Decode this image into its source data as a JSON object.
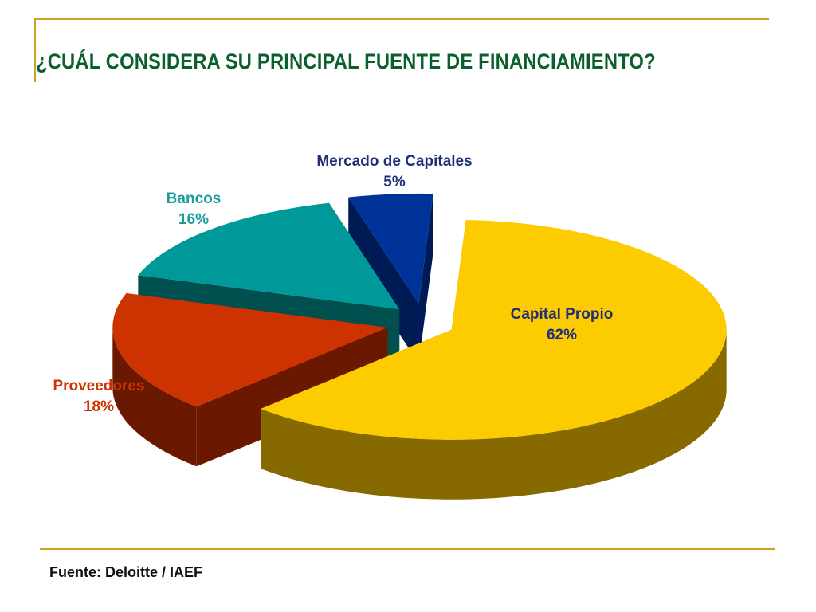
{
  "title": "¿CUÁL CONSIDERA SU PRINCIPAL FUENTE DE FINANCIAMIENTO?",
  "source": "Fuente: Deloitte / IAEF",
  "colors": {
    "title": "#0b5f2c",
    "rule": "#c9a227"
  },
  "chart_data": {
    "type": "pie",
    "style": "3d-exploded",
    "slices": [
      {
        "label": "Capital Propio",
        "value_label": "62%",
        "value": 62,
        "color": "#fdcc00",
        "side_color": "#866a00",
        "label_color": "#1f2f7a"
      },
      {
        "label": "Proveedores",
        "value_label": "18%",
        "value": 18,
        "color": "#cc3300",
        "side_color": "#6a1800",
        "label_color": "#cc3300"
      },
      {
        "label": "Bancos",
        "value_label": "16%",
        "value": 16,
        "color": "#009999",
        "side_color": "#005050",
        "label_color": "#1a9c9c"
      },
      {
        "label": "Mercado de Capitales",
        "value_label": "5%",
        "value": 5,
        "color": "#003399",
        "side_color": "#001a55",
        "label_color": "#1f2f7a"
      }
    ]
  }
}
